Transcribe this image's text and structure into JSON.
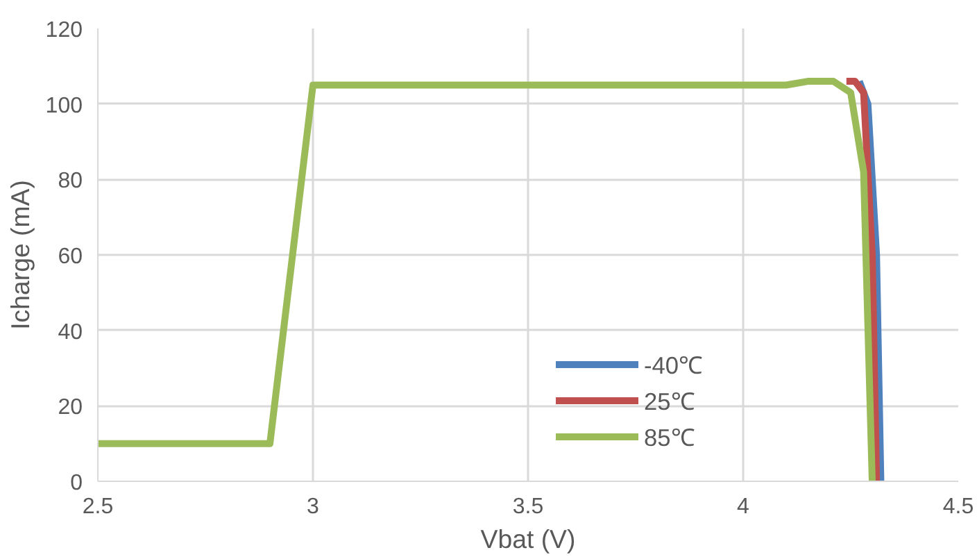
{
  "chart_data": {
    "type": "line",
    "xlabel": "Vbat (V)",
    "ylabel": "Icharge (mA)",
    "xlim": [
      2.5,
      4.5
    ],
    "xticks": [
      2.5,
      3,
      3.5,
      4,
      4.5
    ],
    "ylim": [
      0,
      120
    ],
    "yticks": [
      0,
      20,
      40,
      60,
      80,
      100,
      120
    ],
    "grid": true,
    "legend": "bottom right",
    "marker": "none",
    "line_style": "solid",
    "series": [
      {
        "name": "-40℃",
        "color": "#4f81bd",
        "x": [
          4.27,
          4.29,
          4.31,
          4.32
        ],
        "values": [
          106,
          100,
          60,
          0
        ]
      },
      {
        "name": "25℃",
        "color": "#c0504d",
        "x": [
          4.24,
          4.26,
          4.28,
          4.3,
          4.31
        ],
        "values": [
          106,
          106,
          103,
          60,
          0
        ]
      },
      {
        "name": "85℃",
        "color": "#9bbb59",
        "x": [
          2.5,
          2.9,
          3.0,
          4.1,
          4.15,
          4.21,
          4.25,
          4.28,
          4.3
        ],
        "values": [
          10,
          10,
          105,
          105,
          106,
          106,
          103,
          82,
          0
        ]
      }
    ]
  }
}
